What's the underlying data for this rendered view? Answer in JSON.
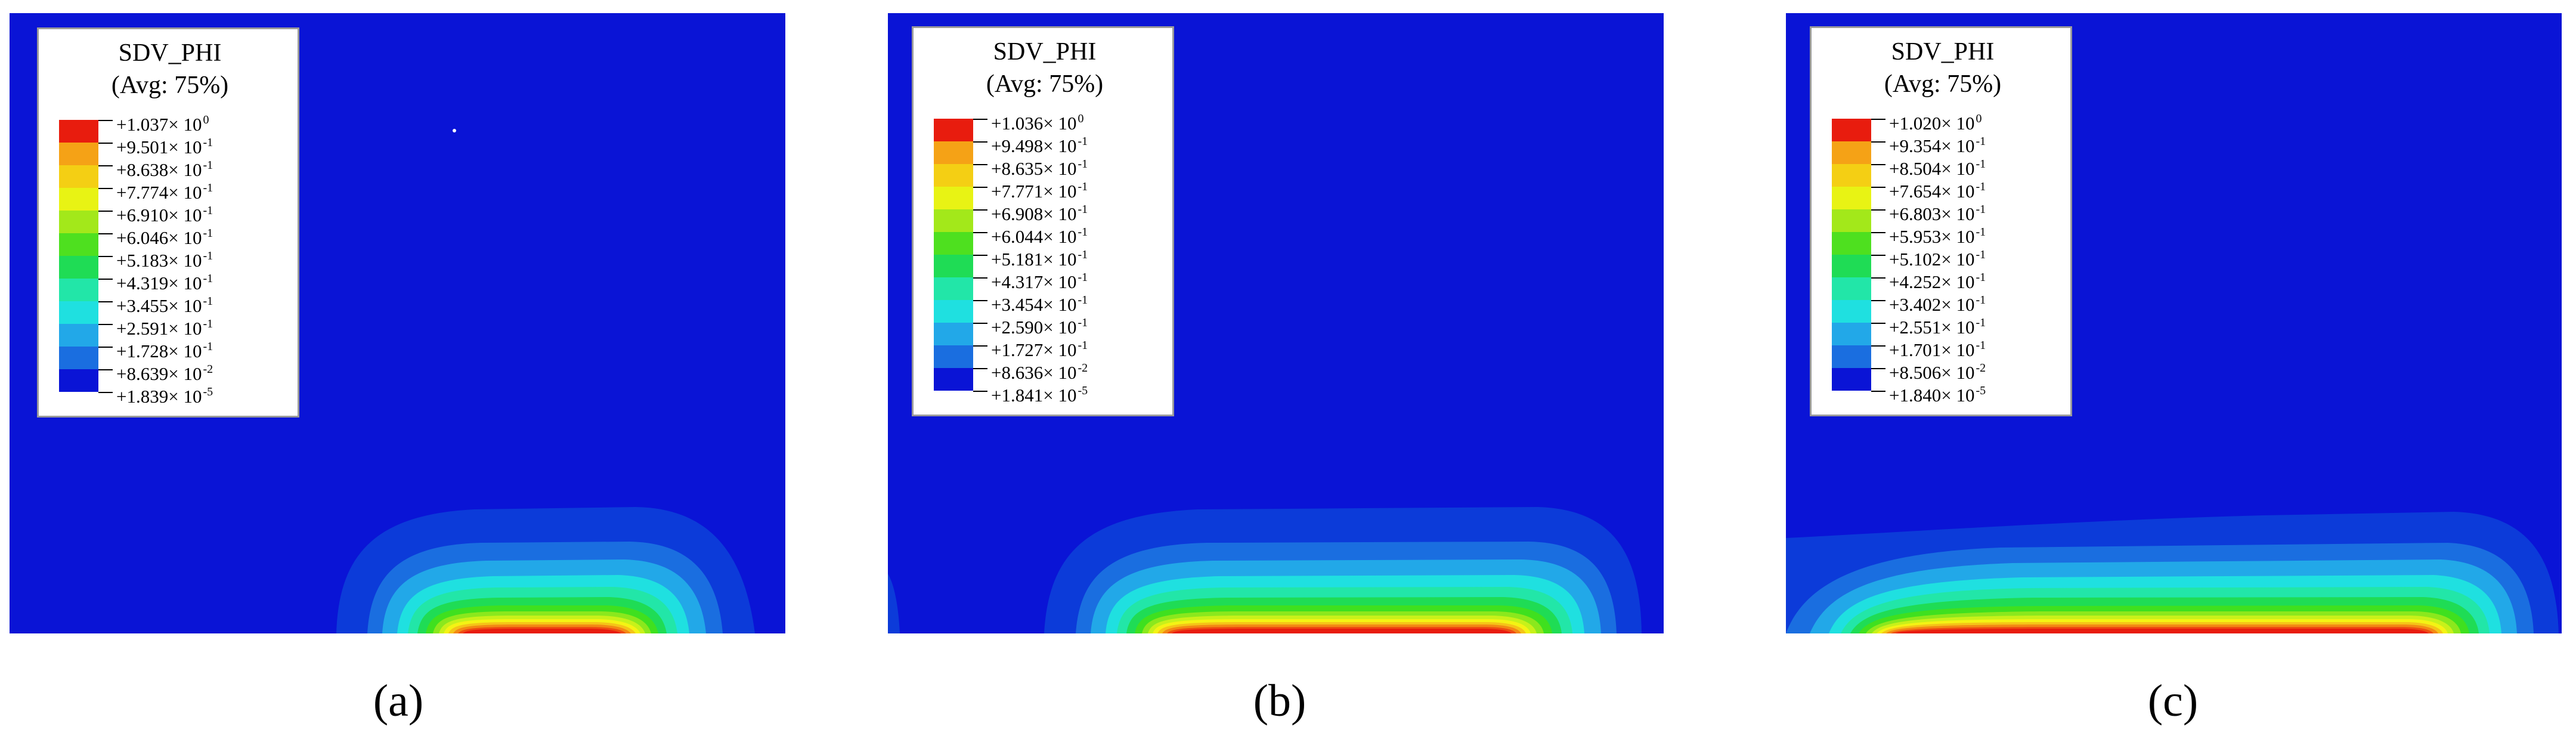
{
  "colors": {
    "background": "#0a14d6",
    "contour_bands": [
      "#0a14d6",
      "#0c3bd9",
      "#1a6ee0",
      "#22a8e8",
      "#1fe0e0",
      "#22e6a8",
      "#1fdc55",
      "#3fe01f",
      "#8be81d",
      "#c8f11a",
      "#f4f314",
      "#f5c418",
      "#f38914",
      "#ee4c11",
      "#e81c0e"
    ]
  },
  "panels": [
    {
      "caption": "(a)",
      "legend": {
        "title": "SDV_PHI",
        "subtitle": "(Avg: 75%)",
        "entries": [
          {
            "mantissa": "+1.037× 10",
            "exp": "0"
          },
          {
            "mantissa": "+9.501× 10",
            "exp": "-1"
          },
          {
            "mantissa": "+8.638× 10",
            "exp": "-1"
          },
          {
            "mantissa": "+7.774× 10",
            "exp": "-1"
          },
          {
            "mantissa": "+6.910× 10",
            "exp": "-1"
          },
          {
            "mantissa": "+6.046× 10",
            "exp": "-1"
          },
          {
            "mantissa": "+5.183× 10",
            "exp": "-1"
          },
          {
            "mantissa": "+4.319× 10",
            "exp": "-1"
          },
          {
            "mantissa": "+3.455× 10",
            "exp": "-1"
          },
          {
            "mantissa": "+2.591× 10",
            "exp": "-1"
          },
          {
            "mantissa": "+1.728× 10",
            "exp": "-1"
          },
          {
            "mantissa": "+8.639× 10",
            "exp": "-2"
          },
          {
            "mantissa": "+1.839× 10",
            "exp": "-5"
          }
        ]
      }
    },
    {
      "caption": "(b)",
      "legend": {
        "title": "SDV_PHI",
        "subtitle": "(Avg: 75%)",
        "entries": [
          {
            "mantissa": "+1.036× 10",
            "exp": "0"
          },
          {
            "mantissa": "+9.498× 10",
            "exp": "-1"
          },
          {
            "mantissa": "+8.635× 10",
            "exp": "-1"
          },
          {
            "mantissa": "+7.771× 10",
            "exp": "-1"
          },
          {
            "mantissa": "+6.908× 10",
            "exp": "-1"
          },
          {
            "mantissa": "+6.044× 10",
            "exp": "-1"
          },
          {
            "mantissa": "+5.181× 10",
            "exp": "-1"
          },
          {
            "mantissa": "+4.317× 10",
            "exp": "-1"
          },
          {
            "mantissa": "+3.454× 10",
            "exp": "-1"
          },
          {
            "mantissa": "+2.590× 10",
            "exp": "-1"
          },
          {
            "mantissa": "+1.727× 10",
            "exp": "-1"
          },
          {
            "mantissa": "+8.636× 10",
            "exp": "-2"
          },
          {
            "mantissa": "+1.841× 10",
            "exp": "-5"
          }
        ]
      }
    },
    {
      "caption": "(c)",
      "legend": {
        "title": "SDV_PHI",
        "subtitle": "(Avg: 75%)",
        "entries": [
          {
            "mantissa": "+1.020× 10",
            "exp": "0"
          },
          {
            "mantissa": "+9.354× 10",
            "exp": "-1"
          },
          {
            "mantissa": "+8.504× 10",
            "exp": "-1"
          },
          {
            "mantissa": "+7.654× 10",
            "exp": "-1"
          },
          {
            "mantissa": "+6.803× 10",
            "exp": "-1"
          },
          {
            "mantissa": "+5.953× 10",
            "exp": "-1"
          },
          {
            "mantissa": "+5.102× 10",
            "exp": "-1"
          },
          {
            "mantissa": "+4.252× 10",
            "exp": "-1"
          },
          {
            "mantissa": "+3.402× 10",
            "exp": "-1"
          },
          {
            "mantissa": "+2.551× 10",
            "exp": "-1"
          },
          {
            "mantissa": "+1.701× 10",
            "exp": "-1"
          },
          {
            "mantissa": "+8.506× 10",
            "exp": "-2"
          },
          {
            "mantissa": "+1.840× 10",
            "exp": "-5"
          }
        ]
      }
    }
  ]
}
